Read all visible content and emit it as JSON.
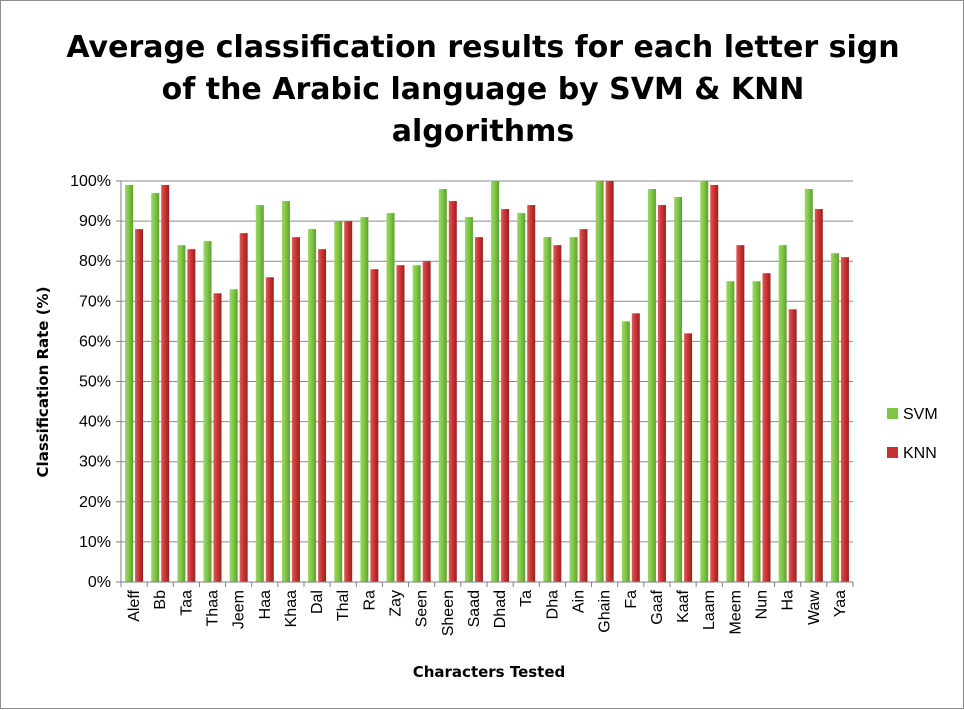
{
  "chart_data": {
    "type": "bar",
    "title_lines": [
      "Average classification results for each letter sign",
      "of the Arabic language by SVM & KNN",
      "algorithms"
    ],
    "xlabel": "Characters Tested",
    "ylabel": "Classification Rate  (%)",
    "ylim": [
      0,
      100
    ],
    "y_ticks": [
      "0%",
      "10%",
      "20%",
      "30%",
      "40%",
      "50%",
      "60%",
      "70%",
      "80%",
      "90%",
      "100%"
    ],
    "grid": true,
    "legend_position": "right",
    "categories": [
      "Aleff",
      "Bb",
      "Taa",
      "Thaa",
      "Jeem",
      "Haa",
      "Khaa",
      "Dal",
      "Thal",
      "Ra",
      "Zay",
      "Seen",
      "Sheen",
      "Saad",
      "Dhad",
      "Ta",
      "Dha",
      "Ain",
      "Ghain",
      "Fa",
      "Gaaf",
      "Kaaf",
      "Laam",
      "Meem",
      "Nun",
      "Ha",
      "Waw",
      "Yaa"
    ],
    "series": [
      {
        "name": "SVM",
        "color": "#7ec544",
        "values": [
          99,
          97,
          84,
          85,
          73,
          94,
          95,
          88,
          90,
          91,
          92,
          79,
          98,
          91,
          100,
          92,
          86,
          86,
          100,
          65,
          98,
          96,
          100,
          75,
          75,
          84,
          98,
          82
        ]
      },
      {
        "name": "KNN",
        "color": "#c83232",
        "values": [
          88,
          99,
          83,
          72,
          87,
          76,
          86,
          83,
          90,
          78,
          79,
          80,
          95,
          86,
          93,
          94,
          84,
          88,
          100,
          67,
          94,
          62,
          99,
          84,
          77,
          68,
          93,
          81
        ]
      }
    ]
  }
}
